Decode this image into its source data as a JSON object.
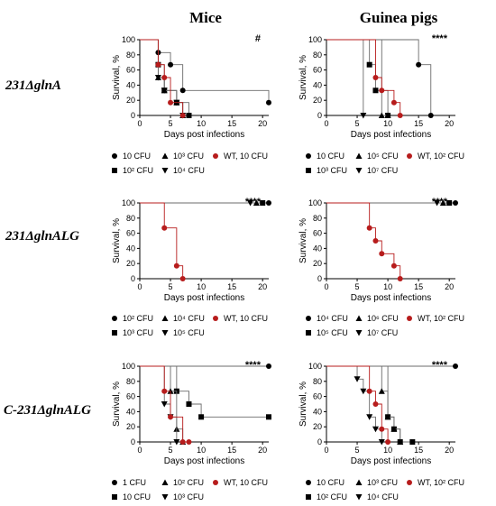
{
  "column_titles": [
    "Mice",
    "Guinea pigs"
  ],
  "row_titles": [
    "231ΔglnA",
    "231ΔglnALG",
    "C-231ΔglnALG"
  ],
  "colors": {
    "black": "#000000",
    "red": "#b71c1c",
    "grid": "#9e9e9e"
  },
  "chart_data": [
    {
      "type": "line",
      "panel": "mice-row1",
      "xlabel": "Days post infections",
      "ylabel": "Survival, %",
      "xlim": [
        0,
        21
      ],
      "ylim": [
        0,
        100
      ],
      "xticks": [
        0,
        5,
        10,
        15,
        20
      ],
      "yticks": [
        0,
        20,
        40,
        60,
        80,
        100
      ],
      "annotation": "#",
      "series": [
        {
          "name": "10 CFU",
          "marker": "circle",
          "color": "#000000",
          "x": [
            0,
            3,
            5,
            7,
            21
          ],
          "y": [
            100,
            83,
            67,
            33,
            17
          ]
        },
        {
          "name": "10² CFU",
          "marker": "square",
          "color": "#000000",
          "x": [
            0,
            3,
            4,
            6,
            8
          ],
          "y": [
            100,
            67,
            33,
            17,
            0
          ]
        },
        {
          "name": "10³ CFU",
          "marker": "triangle-up",
          "color": "#000000",
          "x": [
            0,
            3,
            4,
            6,
            7
          ],
          "y": [
            100,
            50,
            33,
            17,
            0
          ]
        },
        {
          "name": "10⁴ CFU",
          "marker": "triangle-down",
          "color": "#000000",
          "x": [
            0,
            3,
            4,
            6,
            7
          ],
          "y": [
            100,
            50,
            33,
            17,
            0
          ]
        },
        {
          "name": "WT, 10 CFU",
          "marker": "circle",
          "color": "#b71c1c",
          "x": [
            0,
            3,
            4,
            5,
            7
          ],
          "y": [
            100,
            67,
            50,
            17,
            0
          ]
        }
      ]
    },
    {
      "type": "line",
      "panel": "guinea-row1",
      "xlabel": "Days post infections",
      "ylabel": "Survival, %",
      "xlim": [
        0,
        21
      ],
      "ylim": [
        0,
        100
      ],
      "xticks": [
        0,
        5,
        10,
        15,
        20
      ],
      "yticks": [
        0,
        20,
        40,
        60,
        80,
        100
      ],
      "annotation": "****",
      "series": [
        {
          "name": "10 CFU",
          "marker": "circle",
          "color": "#000000",
          "x": [
            0,
            15,
            17
          ],
          "y": [
            100,
            67,
            0
          ]
        },
        {
          "name": "10³ CFU",
          "marker": "square",
          "color": "#000000",
          "x": [
            0,
            7,
            8,
            10
          ],
          "y": [
            100,
            67,
            33,
            0
          ]
        },
        {
          "name": "10⁵ CFU",
          "marker": "triangle-up",
          "color": "#000000",
          "x": [
            0,
            9,
            10
          ],
          "y": [
            100,
            0,
            0
          ]
        },
        {
          "name": "10⁷ CFU",
          "marker": "triangle-down",
          "color": "#000000",
          "x": [
            0,
            6
          ],
          "y": [
            100,
            0
          ]
        },
        {
          "name": "WT, 10² CFU",
          "marker": "circle",
          "color": "#b71c1c",
          "x": [
            0,
            8,
            9,
            11,
            12
          ],
          "y": [
            100,
            50,
            33,
            17,
            0
          ]
        }
      ]
    },
    {
      "type": "line",
      "panel": "mice-row2",
      "xlabel": "Days post infections",
      "ylabel": "Survival, %",
      "xlim": [
        0,
        21
      ],
      "ylim": [
        0,
        100
      ],
      "xticks": [
        0,
        5,
        10,
        15,
        20
      ],
      "yticks": [
        0,
        20,
        40,
        60,
        80,
        100
      ],
      "annotation": "****",
      "series": [
        {
          "name": "10² CFU",
          "marker": "circle",
          "color": "#000000",
          "x": [
            0,
            21
          ],
          "y": [
            100,
            100
          ]
        },
        {
          "name": "10³ CFU",
          "marker": "square",
          "color": "#000000",
          "x": [
            0,
            20
          ],
          "y": [
            100,
            100
          ]
        },
        {
          "name": "10⁴ CFU",
          "marker": "triangle-up",
          "color": "#000000",
          "x": [
            0,
            19
          ],
          "y": [
            100,
            100
          ]
        },
        {
          "name": "10⁵ CFU",
          "marker": "triangle-down",
          "color": "#000000",
          "x": [
            0,
            18
          ],
          "y": [
            100,
            100
          ]
        },
        {
          "name": "WT, 10 CFU",
          "marker": "circle",
          "color": "#b71c1c",
          "x": [
            0,
            4,
            6,
            7
          ],
          "y": [
            100,
            67,
            17,
            0
          ]
        }
      ]
    },
    {
      "type": "line",
      "panel": "guinea-row2",
      "xlabel": "Days post infections",
      "ylabel": "Survival, %",
      "xlim": [
        0,
        21
      ],
      "ylim": [
        0,
        100
      ],
      "xticks": [
        0,
        5,
        10,
        15,
        20
      ],
      "yticks": [
        0,
        20,
        40,
        60,
        80,
        100
      ],
      "annotation": "****",
      "series": [
        {
          "name": "10⁴ CFU",
          "marker": "circle",
          "color": "#000000",
          "x": [
            0,
            21
          ],
          "y": [
            100,
            100
          ]
        },
        {
          "name": "10⁵ CFU",
          "marker": "square",
          "color": "#000000",
          "x": [
            0,
            20
          ],
          "y": [
            100,
            100
          ]
        },
        {
          "name": "10⁶ CFU",
          "marker": "triangle-up",
          "color": "#000000",
          "x": [
            0,
            19
          ],
          "y": [
            100,
            100
          ]
        },
        {
          "name": "10⁷ CFU",
          "marker": "triangle-down",
          "color": "#000000",
          "x": [
            0,
            18
          ],
          "y": [
            100,
            100
          ]
        },
        {
          "name": "WT, 10² CFU",
          "marker": "circle",
          "color": "#b71c1c",
          "x": [
            0,
            7,
            8,
            9,
            11,
            12
          ],
          "y": [
            100,
            67,
            50,
            33,
            17,
            0
          ]
        }
      ]
    },
    {
      "type": "line",
      "panel": "mice-row3",
      "xlabel": "Days post infections",
      "ylabel": "Survival, %",
      "xlim": [
        0,
        21
      ],
      "ylim": [
        0,
        100
      ],
      "xticks": [
        0,
        5,
        10,
        15,
        20
      ],
      "yticks": [
        0,
        20,
        40,
        60,
        80,
        100
      ],
      "annotation": "****",
      "series": [
        {
          "name": "1 CFU",
          "marker": "circle",
          "color": "#000000",
          "x": [
            0,
            21
          ],
          "y": [
            100,
            100
          ]
        },
        {
          "name": "10 CFU",
          "marker": "square",
          "color": "#000000",
          "x": [
            0,
            6,
            8,
            10,
            21
          ],
          "y": [
            100,
            67,
            50,
            33,
            33
          ]
        },
        {
          "name": "10² CFU",
          "marker": "triangle-up",
          "color": "#000000",
          "x": [
            0,
            5,
            6,
            7
          ],
          "y": [
            100,
            67,
            17,
            0
          ]
        },
        {
          "name": "10³ CFU",
          "marker": "triangle-down",
          "color": "#000000",
          "x": [
            0,
            4,
            5,
            6
          ],
          "y": [
            100,
            50,
            33,
            0
          ]
        },
        {
          "name": "WT, 10 CFU",
          "marker": "circle",
          "color": "#b71c1c",
          "x": [
            0,
            4,
            5,
            7,
            8
          ],
          "y": [
            100,
            67,
            33,
            0,
            0
          ]
        }
      ]
    },
    {
      "type": "line",
      "panel": "guinea-row3",
      "xlabel": "Days post infections",
      "ylabel": "Survival, %",
      "xlim": [
        0,
        21
      ],
      "ylim": [
        0,
        100
      ],
      "xticks": [
        0,
        5,
        10,
        15,
        20
      ],
      "yticks": [
        0,
        20,
        40,
        60,
        80,
        100
      ],
      "annotation": "****",
      "series": [
        {
          "name": "10 CFU",
          "marker": "circle",
          "color": "#000000",
          "x": [
            0,
            21
          ],
          "y": [
            100,
            100
          ]
        },
        {
          "name": "10² CFU",
          "marker": "square",
          "color": "#000000",
          "x": [
            0,
            10,
            11,
            12,
            14
          ],
          "y": [
            100,
            33,
            17,
            0,
            0
          ]
        },
        {
          "name": "10³ CFU",
          "marker": "triangle-up",
          "color": "#000000",
          "x": [
            0,
            9,
            10,
            11,
            12
          ],
          "y": [
            100,
            67,
            33,
            17,
            0
          ]
        },
        {
          "name": "10⁴ CFU",
          "marker": "triangle-down",
          "color": "#000000",
          "x": [
            0,
            5,
            6,
            7,
            8,
            9
          ],
          "y": [
            100,
            83,
            67,
            33,
            17,
            0
          ]
        },
        {
          "name": "WT, 10² CFU",
          "marker": "circle",
          "color": "#b71c1c",
          "x": [
            0,
            7,
            8,
            9,
            10
          ],
          "y": [
            100,
            67,
            50,
            17,
            0
          ]
        }
      ]
    }
  ],
  "legends": [
    [
      [
        {
          "label": "10 CFU",
          "marker": "circle",
          "color": "#000000"
        },
        {
          "label": "10³ CFU",
          "marker": "triangle-up",
          "color": "#000000"
        },
        {
          "label": "WT, 10 CFU",
          "marker": "circle",
          "color": "#b71c1c"
        }
      ],
      [
        {
          "label": "10² CFU",
          "marker": "square",
          "color": "#000000"
        },
        {
          "label": "10⁴ CFU",
          "marker": "triangle-down",
          "color": "#000000"
        }
      ]
    ],
    [
      [
        {
          "label": "10 CFU",
          "marker": "circle",
          "color": "#000000"
        },
        {
          "label": "10⁵ CFU",
          "marker": "triangle-up",
          "color": "#000000"
        },
        {
          "label": "WT, 10² CFU",
          "marker": "circle",
          "color": "#b71c1c"
        }
      ],
      [
        {
          "label": "10³ CFU",
          "marker": "square",
          "color": "#000000"
        },
        {
          "label": "10⁷ CFU",
          "marker": "triangle-down",
          "color": "#000000"
        }
      ]
    ],
    [
      [
        {
          "label": "10² CFU",
          "marker": "circle",
          "color": "#000000"
        },
        {
          "label": "10⁴ CFU",
          "marker": "triangle-up",
          "color": "#000000"
        },
        {
          "label": "WT, 10 CFU",
          "marker": "circle",
          "color": "#b71c1c"
        }
      ],
      [
        {
          "label": "10³ CFU",
          "marker": "square",
          "color": "#000000"
        },
        {
          "label": "10⁵ CFU",
          "marker": "triangle-down",
          "color": "#000000"
        }
      ]
    ],
    [
      [
        {
          "label": "10⁴ CFU",
          "marker": "circle",
          "color": "#000000"
        },
        {
          "label": "10⁶ CFU",
          "marker": "triangle-up",
          "color": "#000000"
        },
        {
          "label": "WT, 10² CFU",
          "marker": "circle",
          "color": "#b71c1c"
        }
      ],
      [
        {
          "label": "10⁵ CFU",
          "marker": "square",
          "color": "#000000"
        },
        {
          "label": "10⁷ CFU",
          "marker": "triangle-down",
          "color": "#000000"
        }
      ]
    ],
    [
      [
        {
          "label": "1 CFU",
          "marker": "circle",
          "color": "#000000"
        },
        {
          "label": "10² CFU",
          "marker": "triangle-up",
          "color": "#000000"
        },
        {
          "label": "WT, 10 CFU",
          "marker": "circle",
          "color": "#b71c1c"
        }
      ],
      [
        {
          "label": "10 CFU",
          "marker": "square",
          "color": "#000000"
        },
        {
          "label": "10³ CFU",
          "marker": "triangle-down",
          "color": "#000000"
        }
      ]
    ],
    [
      [
        {
          "label": "10 CFU",
          "marker": "circle",
          "color": "#000000"
        },
        {
          "label": "10³ CFU",
          "marker": "triangle-up",
          "color": "#000000"
        },
        {
          "label": "WT, 10² CFU",
          "marker": "circle",
          "color": "#b71c1c"
        }
      ],
      [
        {
          "label": "10² CFU",
          "marker": "square",
          "color": "#000000"
        },
        {
          "label": "10⁴ CFU",
          "marker": "triangle-down",
          "color": "#000000"
        }
      ]
    ]
  ]
}
